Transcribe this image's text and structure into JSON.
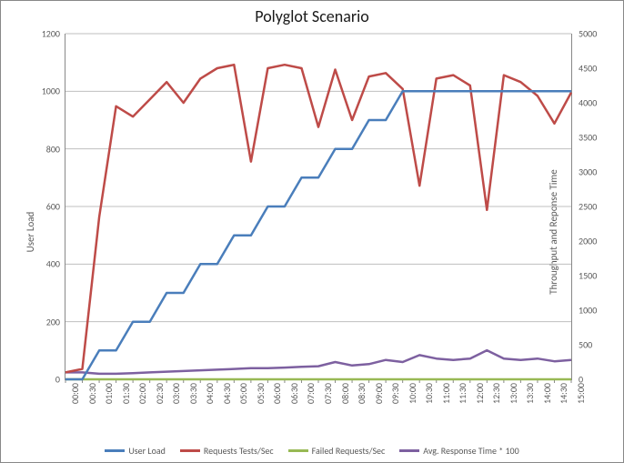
{
  "chart": {
    "title": "Polyglot Scenario",
    "title_fontsize": 18,
    "background_color": "#ffffff",
    "plot_border_color": "#888888",
    "grid_color": "#bfbfbf",
    "tick_label_color": "#595959",
    "font_family": "Calibri",
    "axis_left": {
      "title": "User Load",
      "min": 0,
      "max": 1200,
      "step": 200,
      "ticks": [
        0,
        200,
        400,
        600,
        800,
        1000,
        1200
      ],
      "title_fontsize": 11,
      "tick_fontsize": 10
    },
    "axis_right": {
      "title": "Throughput and Reponse Time",
      "min": 0,
      "max": 5000,
      "step": 500,
      "ticks": [
        0,
        500,
        1000,
        1500,
        2000,
        2500,
        3000,
        3500,
        4000,
        4500,
        5000
      ],
      "title_fontsize": 11,
      "tick_fontsize": 10
    },
    "axis_x": {
      "labels": [
        "00:00",
        "00:30",
        "01:00",
        "01:30",
        "02:00",
        "02:30",
        "03:00",
        "03:30",
        "04:00",
        "04:30",
        "05:00",
        "05:30",
        "06:00",
        "06:30",
        "07:00",
        "07:30",
        "08:00",
        "08:30",
        "09:00",
        "09:30",
        "10:00",
        "10:30",
        "11:00",
        "11:30",
        "12:00",
        "12:30",
        "13:00",
        "13:30",
        "14:00",
        "14:30",
        "15:00"
      ],
      "tick_fontsize": 10
    },
    "series": {
      "user_load": {
        "label": "User Load",
        "color": "#4a7ebb",
        "line_width": 2.5,
        "axis": "left",
        "values": [
          0,
          0,
          100,
          100,
          200,
          200,
          300,
          300,
          400,
          400,
          500,
          500,
          600,
          600,
          700,
          700,
          800,
          800,
          900,
          900,
          1000,
          1000,
          1000,
          1000,
          1000,
          1000,
          1000,
          1000,
          1000,
          1000,
          1000
        ]
      },
      "requests_per_sec": {
        "label": "Requests Tests/Sec",
        "color": "#be4b48",
        "line_width": 2.5,
        "axis": "right",
        "values": [
          100,
          150,
          2350,
          3950,
          3800,
          4050,
          4300,
          4000,
          4350,
          4500,
          4550,
          3150,
          4500,
          4550,
          4500,
          3650,
          4480,
          3750,
          4380,
          4430,
          4200,
          2800,
          4350,
          4400,
          4250,
          2450,
          4400,
          4300,
          4100,
          3700,
          4150
        ]
      },
      "failed_per_sec": {
        "label": "Failed Requests/Sec",
        "color": "#98b954",
        "line_width": 2.5,
        "axis": "right",
        "values": [
          0,
          0,
          0,
          0,
          0,
          0,
          0,
          0,
          0,
          0,
          0,
          0,
          0,
          0,
          0,
          0,
          0,
          0,
          0,
          0,
          0,
          0,
          0,
          0,
          0,
          0,
          0,
          0,
          0,
          0,
          0
        ]
      },
      "avg_response": {
        "label": "Avg. Response Time * 100",
        "color": "#7d60a0",
        "line_width": 2.5,
        "axis": "right",
        "values": [
          100,
          100,
          80,
          80,
          90,
          100,
          110,
          120,
          130,
          140,
          150,
          160,
          160,
          170,
          180,
          190,
          250,
          200,
          220,
          280,
          250,
          350,
          300,
          280,
          300,
          420,
          300,
          280,
          300,
          260,
          280
        ]
      }
    },
    "legend_order": [
      "user_load",
      "requests_per_sec",
      "failed_per_sec",
      "avg_response"
    ]
  }
}
